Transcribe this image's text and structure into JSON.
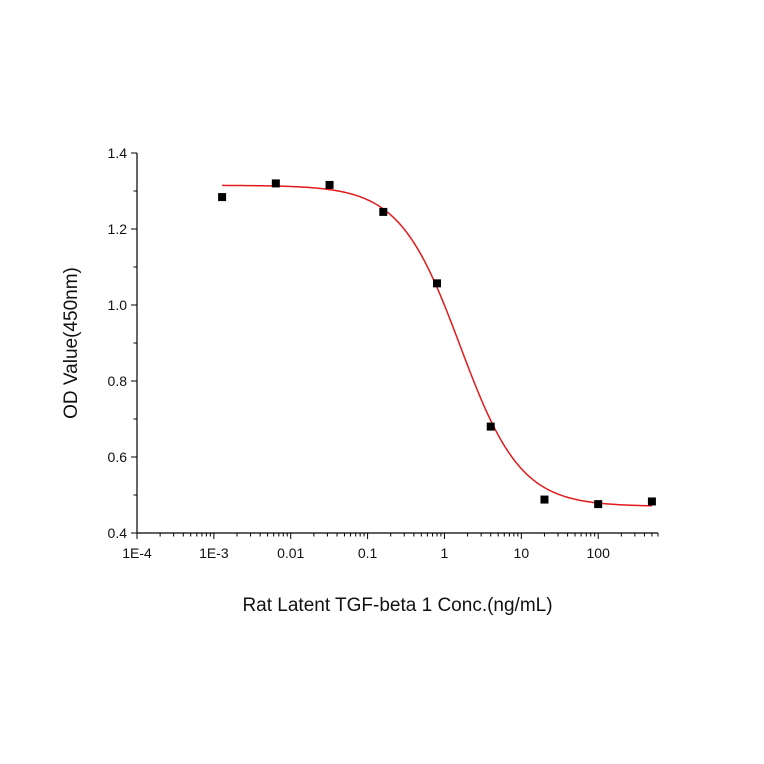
{
  "chart_data": {
    "type": "scatter",
    "title": "",
    "xlabel": "Rat Latent TGF-beta 1 Conc.(ng/mL)",
    "ylabel": "OD Value(450nm)",
    "x_scale": "log",
    "xlim": [
      0.0001,
      600
    ],
    "ylim": [
      0.4,
      1.4
    ],
    "x_ticks": [
      "1E-4",
      "1E-3",
      "0.01",
      "0.1",
      "1",
      "10",
      "100"
    ],
    "y_ticks": [
      "0.4",
      "0.6",
      "0.8",
      "1.0",
      "1.2",
      "1.4"
    ],
    "grid": false,
    "legend": "none",
    "series": [
      {
        "kind": "points",
        "color": "#000000",
        "x": [
          0.00128,
          0.0064,
          0.032,
          0.16,
          0.8,
          4,
          20,
          100,
          500
        ],
        "y": [
          1.284,
          1.32,
          1.316,
          1.245,
          1.057,
          0.68,
          0.488,
          0.476,
          0.483
        ]
      },
      {
        "kind": "fit",
        "model": "4PL",
        "color": "#e31a1c",
        "top": 1.315,
        "bottom": 0.47,
        "ec50": 1.6,
        "hill": 1.1,
        "x_range": [
          0.00128,
          500
        ]
      }
    ]
  }
}
